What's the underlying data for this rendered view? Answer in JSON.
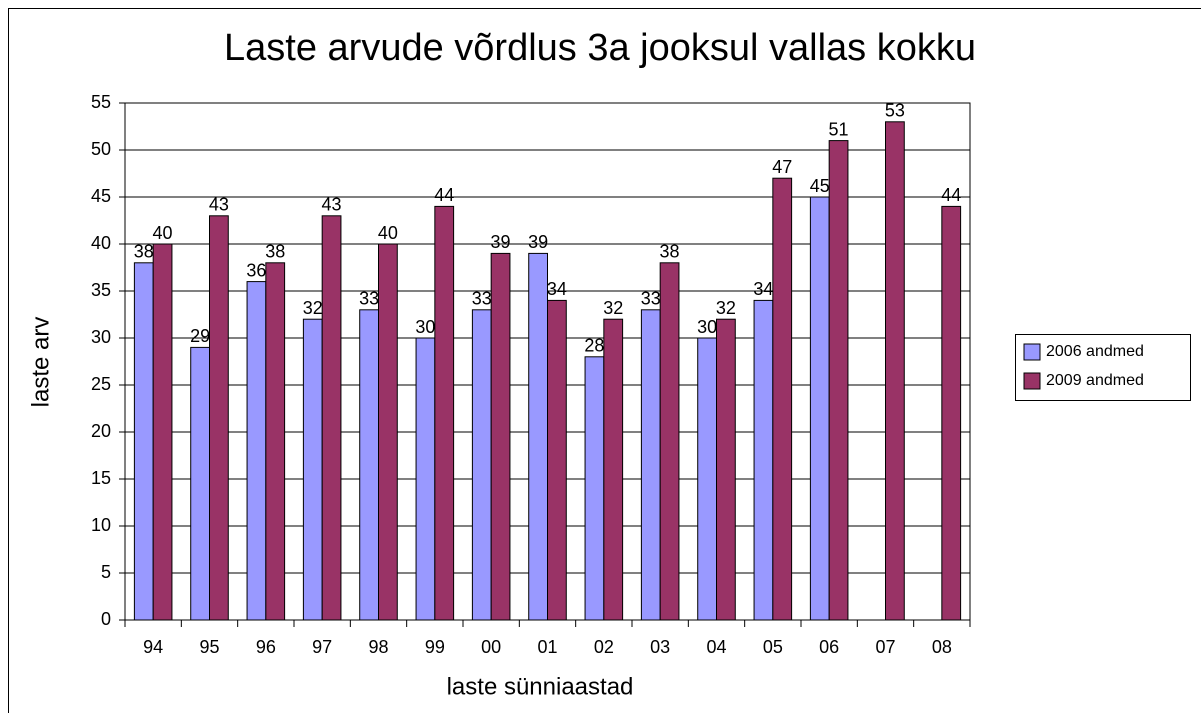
{
  "chart_data": {
    "type": "bar",
    "title": "Laste arvude võrdlus 3a jooksul vallas kokku",
    "x_label": "laste sünniaastad",
    "y_label": "laste arv",
    "categories": [
      "94",
      "95",
      "96",
      "97",
      "98",
      "99",
      "00",
      "01",
      "02",
      "03",
      "04",
      "05",
      "06",
      "07",
      "08"
    ],
    "series": [
      {
        "name": "2006 andmed",
        "color": "#9999ff",
        "values": [
          38,
          29,
          36,
          32,
          33,
          30,
          33,
          39,
          28,
          33,
          30,
          34,
          45,
          null,
          null
        ]
      },
      {
        "name": "2009 andmed",
        "color": "#993366",
        "values": [
          40,
          43,
          38,
          43,
          40,
          44,
          39,
          34,
          32,
          38,
          32,
          47,
          51,
          53,
          44
        ]
      }
    ],
    "ylim": [
      0,
      55
    ],
    "yticks": [
      0,
      5,
      10,
      15,
      20,
      25,
      30,
      35,
      40,
      45,
      50,
      55
    ],
    "grid": true,
    "legend": "right"
  }
}
